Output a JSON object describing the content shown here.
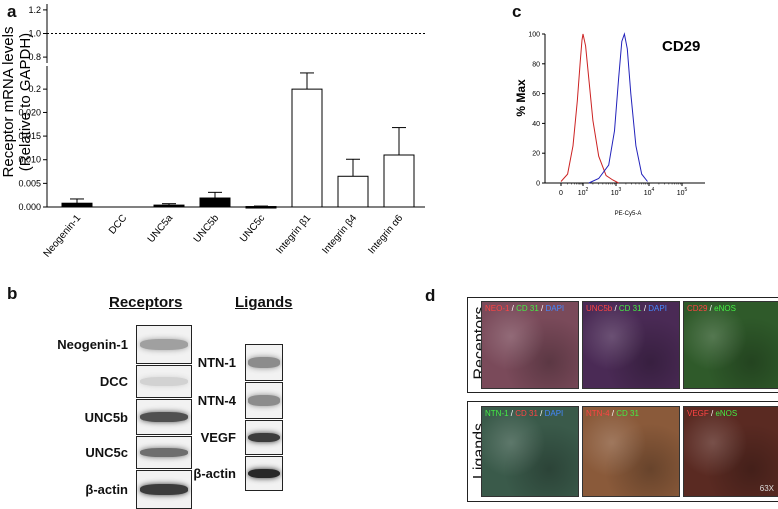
{
  "panels": {
    "a": "a",
    "b": "b",
    "c": "c",
    "d": "d"
  },
  "chart_data": [
    {
      "type": "bar",
      "ylabel_line1": "Receptor  mRNA levels",
      "ylabel_line2": "(Relative to GAPDH)",
      "categories": [
        "Neogenin-1",
        "DCC",
        "UNC5a",
        "UNC5b",
        "UNC5c",
        "Integrin β1",
        "Integrin β4",
        "Integrin α6"
      ],
      "values": [
        0.0008,
        0.0,
        0.0004,
        0.0019,
        0.0001,
        0.2,
        0.0065,
        0.011
      ],
      "errors": [
        0.0009,
        0.0,
        0.0003,
        0.0012,
        0.0001,
        0.07,
        0.0036,
        0.0058
      ],
      "fill": [
        "black",
        "black",
        "black",
        "black",
        "black",
        "white",
        "white",
        "white"
      ],
      "upper_axis": {
        "ticks": [
          "0.8",
          "1.0",
          "1.2"
        ]
      },
      "lower_axis": {
        "ticks": [
          "0.000",
          "0.005",
          "0.010",
          "0.015",
          "0.020"
        ]
      },
      "break_ticks": [
        "0.2"
      ],
      "reference_line": {
        "value": 1.0,
        "style": "dashed"
      }
    },
    {
      "type": "line",
      "title": "CD29",
      "ylabel": "% Max",
      "xlabel": "PE-Cy5-A",
      "yticks": [
        "0",
        "20",
        "40",
        "60",
        "80",
        "100"
      ],
      "xticks": [
        {
          "base": "0",
          "exp": ""
        },
        {
          "base": "10",
          "exp": "2"
        },
        {
          "base": "10",
          "exp": "3"
        },
        {
          "base": "10",
          "exp": "4"
        },
        {
          "base": "10",
          "exp": "5"
        }
      ],
      "x_scale": "log",
      "series": [
        {
          "color": "#cc2222",
          "x": [
            10,
            20,
            35,
            55,
            75,
            90,
            100,
            120,
            150,
            200,
            300,
            500,
            800,
            1200
          ],
          "y": [
            1,
            6,
            25,
            55,
            82,
            96,
            100,
            92,
            70,
            42,
            18,
            5,
            2,
            0
          ]
        },
        {
          "color": "#2222bb",
          "x": [
            150,
            300,
            600,
            900,
            1200,
            1500,
            1800,
            2200,
            2800,
            4000,
            6000,
            9000
          ],
          "y": [
            0,
            3,
            12,
            35,
            70,
            95,
            100,
            90,
            60,
            25,
            6,
            1
          ]
        }
      ]
    }
  ],
  "western_blot": {
    "receptors_title": "Receptors",
    "ligands_title": "Ligands",
    "receptor_rows": [
      {
        "label": "Neogenin-1",
        "intensity": 0.35
      },
      {
        "label": "DCC",
        "intensity": 0.1
      },
      {
        "label": "UNC5b",
        "intensity": 0.75
      },
      {
        "label": "UNC5c",
        "intensity": 0.6
      },
      {
        "label": "β-actin",
        "intensity": 0.85
      }
    ],
    "ligand_rows": [
      {
        "label": "NTN-1",
        "intensity": 0.45
      },
      {
        "label": "NTN-4",
        "intensity": 0.45
      },
      {
        "label": "VEGF",
        "intensity": 0.85
      },
      {
        "label": "β-actin",
        "intensity": 0.95
      }
    ]
  },
  "microscopy": {
    "receptors_label": "Receptors",
    "ligands_label": "Ligands",
    "magnification": "63X",
    "slash": "/",
    "receptors_tiles": [
      {
        "a": "NEO-1",
        "b": "CD 31",
        "c": "DAPI",
        "bg": "#7a4a5a"
      },
      {
        "a": "UNC5b",
        "b": "CD 31",
        "c": "DAPI",
        "bg": "#4a2a55"
      },
      {
        "a": "CD29",
        "b": "eNOS",
        "c": "",
        "bg": "#2f5a2a"
      }
    ],
    "ligands_tiles": [
      {
        "a": "NTN-1",
        "b": "CD 31",
        "c": "DAPI",
        "bg": "#3a5a4a"
      },
      {
        "a": "NTN-4",
        "b": "CD 31",
        "c": "",
        "bg": "#8a5a3a"
      },
      {
        "a": "VEGF",
        "b": "eNOS",
        "c": "",
        "bg": "#5a2a22"
      }
    ]
  }
}
